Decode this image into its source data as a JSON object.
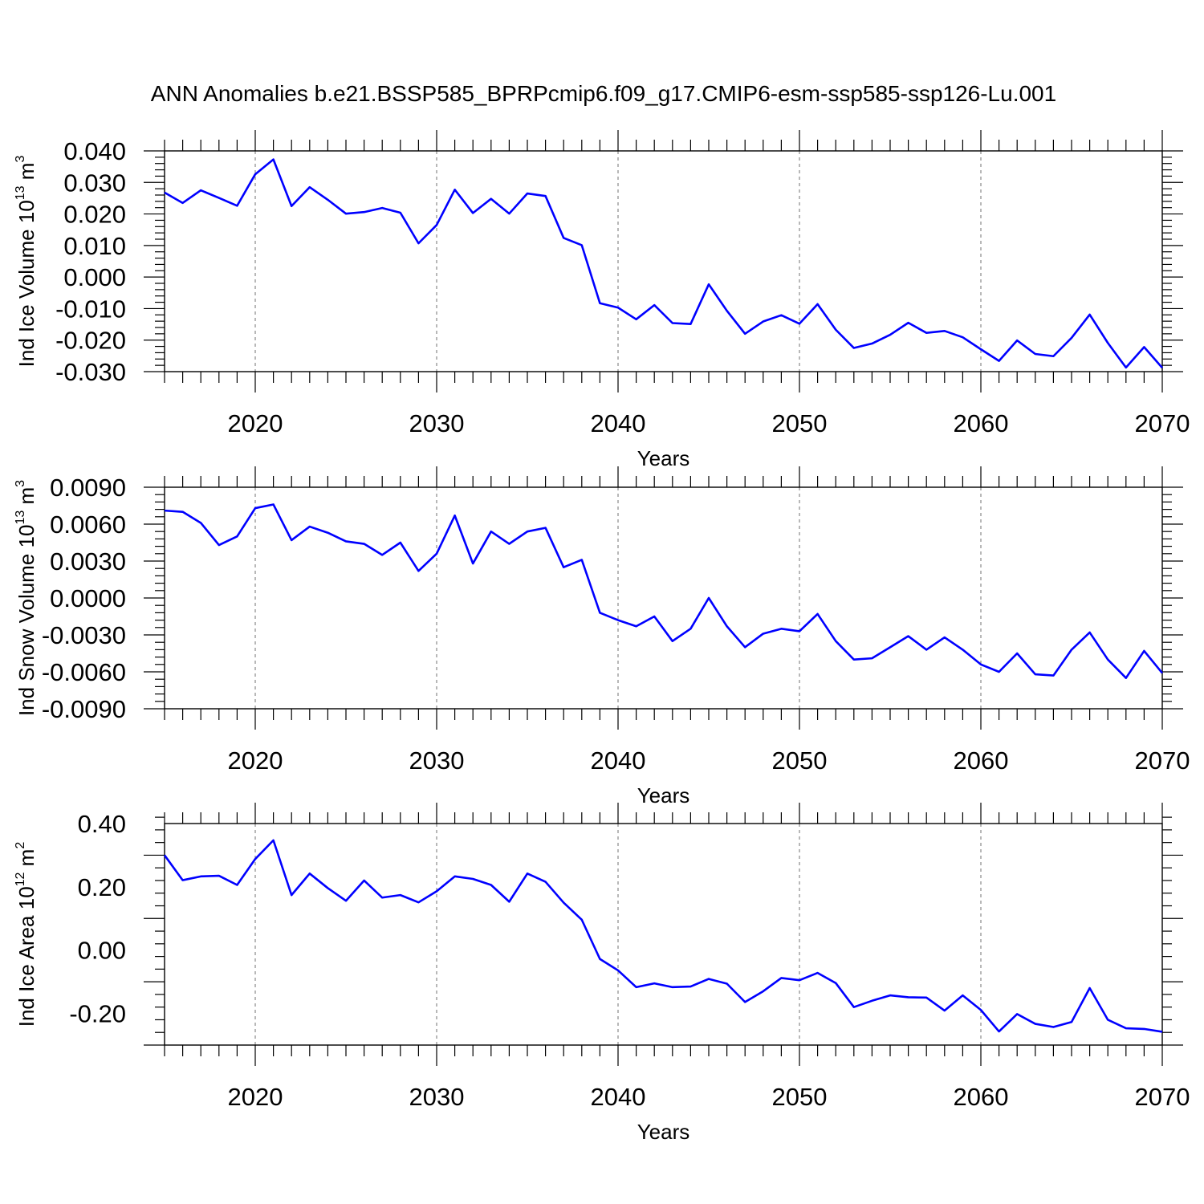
{
  "figure": {
    "title": "ANN Anomalies b.e21.BSSP585_BPRPcmip6.f09_g17.CMIP6-esm-ssp585-ssp126-Lu.001"
  },
  "chart_data": [
    {
      "type": "line",
      "title": "",
      "xlabel": "Years",
      "ylabel_parts": [
        "Ind Ice Volume 10",
        "13",
        " m",
        "3"
      ],
      "xlim": [
        2015,
        2070
      ],
      "ylim": [
        -0.03,
        0.04
      ],
      "xticks": [
        2020,
        2030,
        2040,
        2050,
        2060,
        2070
      ],
      "xtick_labels": [
        "2020",
        "2030",
        "2040",
        "2050",
        "2060",
        "2070"
      ],
      "yticks": [
        -0.03,
        -0.02,
        -0.01,
        0.0,
        0.01,
        0.02,
        0.03,
        0.04
      ],
      "ytick_labels": [
        "-0.030",
        "-0.020",
        "-0.010",
        "0.000",
        "0.010",
        "0.020",
        "0.030",
        "0.040"
      ],
      "grid": "vertical dashed at major x ticks",
      "line_color": "#0000ff",
      "x": [
        2015,
        2016,
        2017,
        2018,
        2019,
        2020,
        2021,
        2022,
        2023,
        2024,
        2025,
        2026,
        2027,
        2028,
        2029,
        2030,
        2031,
        2032,
        2033,
        2034,
        2035,
        2036,
        2037,
        2038,
        2039,
        2040,
        2041,
        2042,
        2043,
        2044,
        2045,
        2046,
        2047,
        2048,
        2049,
        2050,
        2051,
        2052,
        2053,
        2054,
        2055,
        2056,
        2057,
        2058,
        2059,
        2060,
        2061,
        2062,
        2063,
        2064,
        2065,
        2066,
        2067,
        2068,
        2069,
        2070
      ],
      "values": [
        0.0268,
        0.0235,
        0.0275,
        0.0251,
        0.0226,
        0.0326,
        0.0373,
        0.0225,
        0.0285,
        0.0245,
        0.0201,
        0.0206,
        0.0219,
        0.0204,
        0.0107,
        0.0165,
        0.0277,
        0.0203,
        0.0248,
        0.0201,
        0.0265,
        0.0257,
        0.0124,
        0.0101,
        -0.0083,
        -0.0097,
        -0.0134,
        -0.0089,
        -0.0146,
        -0.0149,
        -0.0023,
        -0.0107,
        -0.018,
        -0.0141,
        -0.0121,
        -0.0148,
        -0.0086,
        -0.0167,
        -0.0225,
        -0.0211,
        -0.0183,
        -0.0145,
        -0.0177,
        -0.0171,
        -0.0191,
        -0.0229,
        -0.0266,
        -0.0201,
        -0.0244,
        -0.0251,
        -0.0193,
        -0.0119,
        -0.0209,
        -0.0287,
        -0.0222,
        -0.0288
      ]
    },
    {
      "type": "line",
      "title": "",
      "xlabel": "Years",
      "ylabel_parts": [
        "Ind Snow Volume 10",
        "13",
        " m",
        "3"
      ],
      "xlim": [
        2015,
        2070
      ],
      "ylim": [
        -0.009,
        0.009
      ],
      "xticks": [
        2020,
        2030,
        2040,
        2050,
        2060,
        2070
      ],
      "xtick_labels": [
        "2020",
        "2030",
        "2040",
        "2050",
        "2060",
        "2070"
      ],
      "yticks": [
        -0.009,
        -0.006,
        -0.003,
        0.0,
        0.003,
        0.006,
        0.009
      ],
      "ytick_labels": [
        "-0.0090",
        "-0.0060",
        "-0.0030",
        "0.0000",
        "0.0030",
        "0.0060",
        "0.0090"
      ],
      "grid": "vertical dashed at major x ticks",
      "line_color": "#0000ff",
      "x": [
        2015,
        2016,
        2017,
        2018,
        2019,
        2020,
        2021,
        2022,
        2023,
        2024,
        2025,
        2026,
        2027,
        2028,
        2029,
        2030,
        2031,
        2032,
        2033,
        2034,
        2035,
        2036,
        2037,
        2038,
        2039,
        2040,
        2041,
        2042,
        2043,
        2044,
        2045,
        2046,
        2047,
        2048,
        2049,
        2050,
        2051,
        2052,
        2053,
        2054,
        2055,
        2056,
        2057,
        2058,
        2059,
        2060,
        2061,
        2062,
        2063,
        2064,
        2065,
        2066,
        2067,
        2068,
        2069,
        2070
      ],
      "values": [
        0.0071,
        0.007,
        0.0061,
        0.0043,
        0.005,
        0.0073,
        0.0076,
        0.0047,
        0.0058,
        0.0053,
        0.0046,
        0.0044,
        0.0035,
        0.0045,
        0.0022,
        0.0036,
        0.0067,
        0.0028,
        0.0054,
        0.0044,
        0.0054,
        0.0057,
        0.0025,
        0.0031,
        -0.0012,
        -0.0018,
        -0.0023,
        -0.0015,
        -0.0035,
        -0.0025,
        0.0,
        -0.0023,
        -0.004,
        -0.0029,
        -0.0025,
        -0.0027,
        -0.0013,
        -0.0035,
        -0.005,
        -0.0049,
        -0.004,
        -0.0031,
        -0.0042,
        -0.0032,
        -0.0042,
        -0.0054,
        -0.006,
        -0.0045,
        -0.0062,
        -0.0063,
        -0.0042,
        -0.0028,
        -0.005,
        -0.0065,
        -0.0043,
        -0.0061
      ]
    },
    {
      "type": "line",
      "title": "",
      "xlabel": "Years",
      "ylabel_parts": [
        "Ind Ice Area 10",
        "12",
        " m",
        "2"
      ],
      "xlim": [
        2015,
        2070
      ],
      "ylim": [
        -0.3,
        0.4
      ],
      "xticks": [
        2020,
        2030,
        2040,
        2050,
        2060,
        2070
      ],
      "xtick_labels": [
        "2020",
        "2030",
        "2040",
        "2050",
        "2060",
        "2070"
      ],
      "yticks": [
        -0.2,
        0.0,
        0.2,
        0.4
      ],
      "ytick_labels": [
        "-0.20",
        "0.00",
        "0.20",
        "0.40"
      ],
      "grid": "vertical dashed at major x ticks",
      "line_color": "#0000ff",
      "x": [
        2015,
        2016,
        2017,
        2018,
        2019,
        2020,
        2021,
        2022,
        2023,
        2024,
        2025,
        2026,
        2027,
        2028,
        2029,
        2030,
        2031,
        2032,
        2033,
        2034,
        2035,
        2036,
        2037,
        2038,
        2039,
        2040,
        2041,
        2042,
        2043,
        2044,
        2045,
        2046,
        2047,
        2048,
        2049,
        2050,
        2051,
        2052,
        2053,
        2054,
        2055,
        2056,
        2057,
        2058,
        2059,
        2060,
        2061,
        2062,
        2063,
        2064,
        2065,
        2066,
        2067,
        2068,
        2069,
        2070
      ],
      "values": [
        0.3,
        0.221,
        0.233,
        0.235,
        0.206,
        0.288,
        0.347,
        0.174,
        0.242,
        0.196,
        0.156,
        0.22,
        0.166,
        0.174,
        0.151,
        0.186,
        0.233,
        0.225,
        0.206,
        0.153,
        0.242,
        0.216,
        0.15,
        0.096,
        -0.028,
        -0.064,
        -0.117,
        -0.105,
        -0.117,
        -0.115,
        -0.091,
        -0.106,
        -0.164,
        -0.13,
        -0.088,
        -0.095,
        -0.072,
        -0.104,
        -0.18,
        -0.16,
        -0.143,
        -0.149,
        -0.15,
        -0.191,
        -0.143,
        -0.189,
        -0.257,
        -0.202,
        -0.233,
        -0.243,
        -0.227,
        -0.12,
        -0.22,
        -0.247,
        -0.249,
        -0.258
      ]
    }
  ]
}
